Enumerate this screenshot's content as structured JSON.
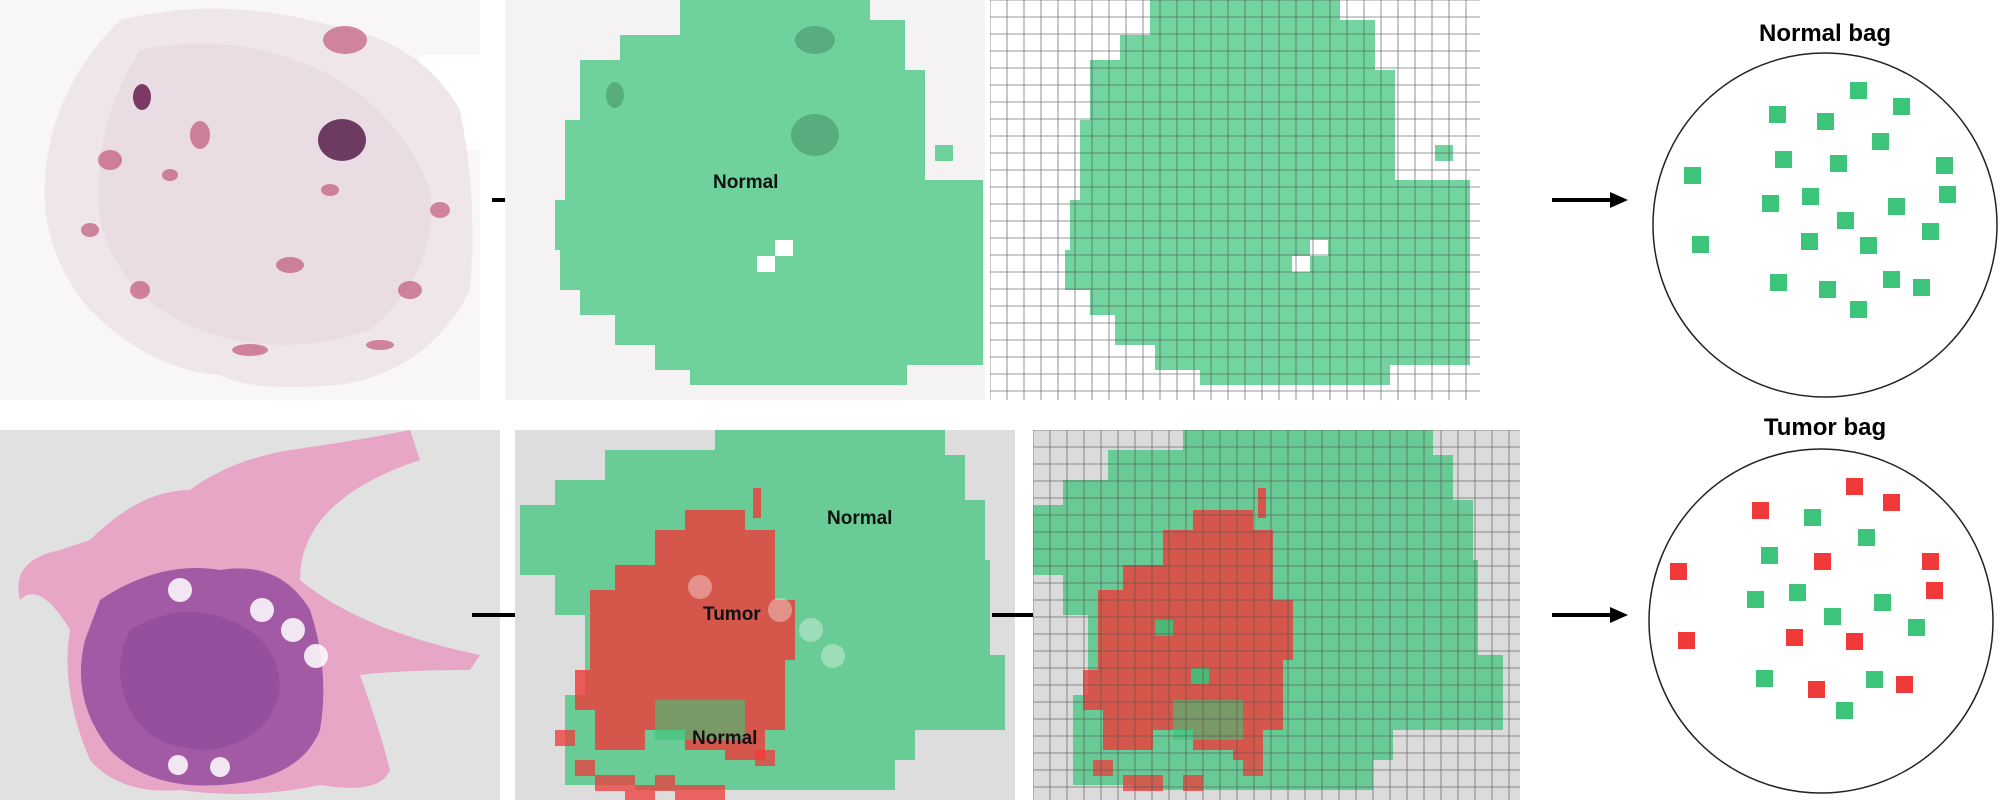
{
  "rows": [
    {
      "name": "normal",
      "stage_labels": [
        "Normal"
      ],
      "bag_title": "Normal bag",
      "bag_instances": "normal"
    },
    {
      "name": "tumor",
      "stage_labels": [
        "Normal",
        "Tumor",
        "Normal"
      ],
      "bag_title": "Tumor bag",
      "bag_instances": "mixed"
    }
  ],
  "colors": {
    "normal": "#3cc47a",
    "tumor": "#f03a3a",
    "he_stain": "#b05aa8",
    "he_light_stain": "#c2587a",
    "grid": "#555555",
    "arrow": "#000000"
  }
}
